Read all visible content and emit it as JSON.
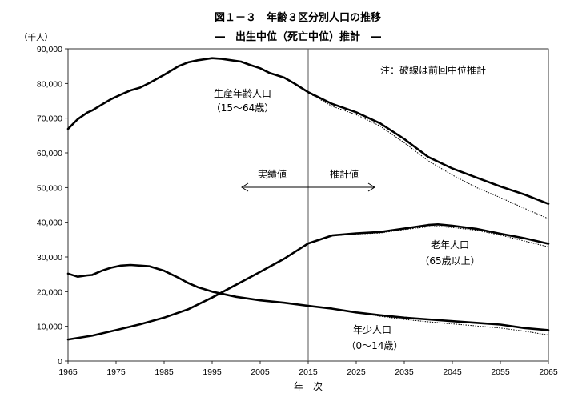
{
  "chart_data": {
    "type": "line",
    "title": "図１－３　年齢３区分別人口の推移",
    "subtitle": "―　出生中位（死亡中位）推計　―",
    "xlabel": "年　次",
    "ylabel": "（千人）",
    "xlim": [
      1965,
      2065
    ],
    "ylim": [
      0,
      90000
    ],
    "x_ticks": [
      "1965",
      "1975",
      "1985",
      "1995",
      "2005",
      "2015",
      "2025",
      "2035",
      "2045",
      "2055",
      "2065"
    ],
    "y_ticks": [
      "0",
      "10,000",
      "20,000",
      "30,000",
      "40,000",
      "50,000",
      "60,000",
      "70,000",
      "80,000",
      "90,000"
    ],
    "grid": false,
    "note": "注：破線は前回中位推計",
    "divider_year": 2015,
    "phase_labels": {
      "actual": "実績値",
      "projection": "推計値"
    },
    "series": [
      {
        "name": "生産年齢人口",
        "name_sub": "（15～64歳）",
        "x": [
          1965,
          1967,
          1969,
          1970,
          1972,
          1974,
          1976,
          1978,
          1980,
          1982,
          1985,
          1988,
          1990,
          1992,
          1995,
          1997,
          1999,
          2001,
          2003,
          2005,
          2007,
          2010,
          2012,
          2015,
          2020,
          2025,
          2030,
          2035,
          2040,
          2045,
          2050,
          2055,
          2060,
          2065
        ],
        "values": [
          66900,
          69700,
          71600,
          72200,
          73900,
          75500,
          76800,
          78000,
          78800,
          80200,
          82500,
          85000,
          86100,
          86700,
          87300,
          87100,
          86700,
          86300,
          85300,
          84400,
          83000,
          81700,
          80100,
          77500,
          74100,
          71700,
          68500,
          64000,
          58800,
          55500,
          52900,
          50300,
          48000,
          45300
        ],
        "previous": {
          "x": [
            2015,
            2020,
            2025,
            2030,
            2035,
            2040,
            2045,
            2050,
            2055,
            2060,
            2065
          ],
          "values": [
            77300,
            73400,
            71000,
            67700,
            62900,
            57700,
            53600,
            50000,
            47100,
            44000,
            41000
          ]
        }
      },
      {
        "name": "老年人口",
        "name_sub": "（65歳以上）",
        "x": [
          1965,
          1970,
          1975,
          1980,
          1985,
          1990,
          1995,
          2000,
          2005,
          2010,
          2015,
          2020,
          2025,
          2030,
          2035,
          2040,
          2042,
          2045,
          2050,
          2055,
          2060,
          2065
        ],
        "values": [
          6200,
          7300,
          8900,
          10600,
          12500,
          14900,
          18300,
          22000,
          25700,
          29500,
          33900,
          36200,
          36800,
          37200,
          38200,
          39200,
          39400,
          39000,
          38100,
          36700,
          35400,
          33800
        ],
        "previous": {
          "x": [
            2015,
            2020,
            2025,
            2030,
            2035,
            2040,
            2042,
            2045,
            2050,
            2055,
            2060,
            2065
          ],
          "values": [
            33900,
            36100,
            36600,
            36900,
            37900,
            38700,
            38800,
            38500,
            37700,
            36300,
            34600,
            32900
          ]
        }
      },
      {
        "name": "年少人口",
        "name_sub": "（0～14歳）",
        "x": [
          1965,
          1967,
          1969,
          1970,
          1972,
          1974,
          1976,
          1978,
          1980,
          1982,
          1985,
          1988,
          1990,
          1992,
          1995,
          2000,
          2005,
          2010,
          2015,
          2020,
          2025,
          2030,
          2035,
          2040,
          2045,
          2050,
          2055,
          2060,
          2065
        ],
        "values": [
          25200,
          24300,
          24700,
          24800,
          26000,
          26900,
          27500,
          27700,
          27500,
          27300,
          26000,
          24000,
          22500,
          21300,
          20000,
          18500,
          17500,
          16800,
          15900,
          15100,
          14000,
          13200,
          12500,
          12000,
          11500,
          11000,
          10500,
          9500,
          8900
        ],
        "previous": {
          "x": [
            2015,
            2020,
            2025,
            2030,
            2035,
            2040,
            2045,
            2050,
            2055,
            2060,
            2065
          ],
          "values": [
            15900,
            15100,
            14000,
            12900,
            12000,
            11300,
            10700,
            10100,
            9500,
            8600,
            7500
          ]
        }
      }
    ]
  }
}
